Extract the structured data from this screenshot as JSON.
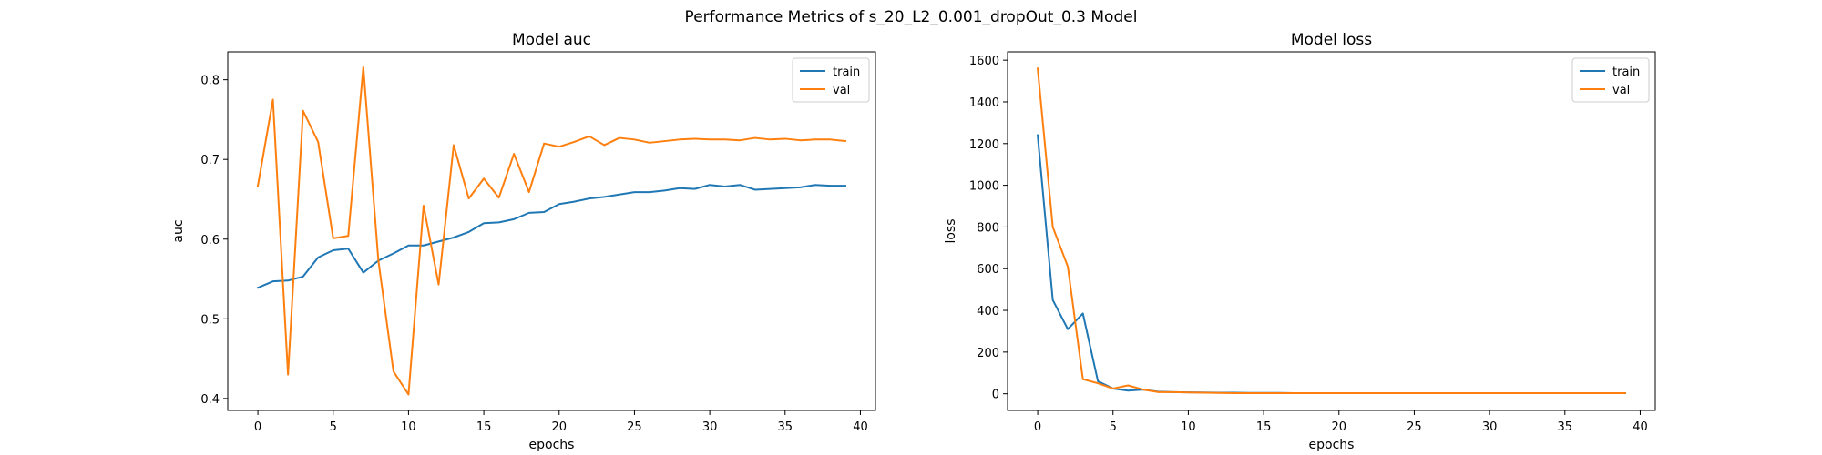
{
  "figure": {
    "suptitle": "Performance Metrics of s_20_L2_0.001_dropOut_0.3 Model"
  },
  "colors": {
    "train": "#1f77b4",
    "val": "#ff7f0e",
    "axis": "#000000",
    "legend_border": "#cccccc"
  },
  "chart_data": [
    {
      "type": "line",
      "title": "Model auc",
      "xlabel": "epochs",
      "ylabel": "auc",
      "xlim": [
        -2,
        41
      ],
      "ylim": [
        0.385,
        0.835
      ],
      "xticks": [
        0,
        5,
        10,
        15,
        20,
        25,
        30,
        35,
        40
      ],
      "yticks": [
        0.4,
        0.5,
        0.6,
        0.7,
        0.8
      ],
      "ytick_labels": [
        "0.4",
        "0.5",
        "0.6",
        "0.7",
        "0.8"
      ],
      "grid": false,
      "legend": "top-right",
      "x": [
        0,
        1,
        2,
        3,
        4,
        5,
        6,
        7,
        8,
        9,
        10,
        11,
        12,
        13,
        14,
        15,
        16,
        17,
        18,
        19,
        20,
        21,
        22,
        23,
        24,
        25,
        26,
        27,
        28,
        29,
        30,
        31,
        32,
        33,
        34,
        35,
        36,
        37,
        38,
        39
      ],
      "series": [
        {
          "name": "train",
          "color": "#1f77b4",
          "values": [
            0.539,
            0.547,
            0.548,
            0.553,
            0.577,
            0.586,
            0.588,
            0.558,
            0.573,
            0.582,
            0.592,
            0.592,
            0.597,
            0.602,
            0.609,
            0.62,
            0.621,
            0.625,
            0.633,
            0.634,
            0.644,
            0.647,
            0.651,
            0.653,
            0.656,
            0.659,
            0.659,
            0.661,
            0.664,
            0.663,
            0.668,
            0.666,
            0.668,
            0.662,
            0.663,
            0.664,
            0.665,
            0.668,
            0.667,
            0.667
          ]
        },
        {
          "name": "val",
          "color": "#ff7f0e",
          "values": [
            0.667,
            0.775,
            0.43,
            0.761,
            0.722,
            0.601,
            0.604,
            0.816,
            0.573,
            0.434,
            0.405,
            0.642,
            0.543,
            0.718,
            0.651,
            0.676,
            0.652,
            0.707,
            0.659,
            0.72,
            0.716,
            0.722,
            0.729,
            0.718,
            0.727,
            0.725,
            0.721,
            0.723,
            0.725,
            0.726,
            0.725,
            0.725,
            0.724,
            0.727,
            0.725,
            0.726,
            0.724,
            0.725,
            0.725,
            0.723
          ]
        }
      ]
    },
    {
      "type": "line",
      "title": "Model loss",
      "xlabel": "epochs",
      "ylabel": "loss",
      "xlim": [
        -2,
        41
      ],
      "ylim": [
        -80,
        1640
      ],
      "xticks": [
        0,
        5,
        10,
        15,
        20,
        25,
        30,
        35,
        40
      ],
      "yticks": [
        0,
        200,
        400,
        600,
        800,
        1000,
        1200,
        1400,
        1600
      ],
      "ytick_labels": [
        "0",
        "200",
        "400",
        "600",
        "800",
        "1000",
        "1200",
        "1400",
        "1600"
      ],
      "grid": false,
      "legend": "top-right",
      "x": [
        0,
        1,
        2,
        3,
        4,
        5,
        6,
        7,
        8,
        9,
        10,
        11,
        12,
        13,
        14,
        15,
        16,
        17,
        18,
        19,
        20,
        21,
        22,
        23,
        24,
        25,
        26,
        27,
        28,
        29,
        30,
        31,
        32,
        33,
        34,
        35,
        36,
        37,
        38,
        39
      ],
      "series": [
        {
          "name": "train",
          "color": "#1f77b4",
          "values": [
            1240,
            450,
            310,
            385,
            60,
            25,
            15,
            20,
            10,
            8,
            7,
            6,
            5,
            5,
            4,
            4,
            4,
            3,
            3,
            3,
            3,
            3,
            3,
            3,
            3,
            3,
            3,
            3,
            3,
            3,
            3,
            3,
            3,
            3,
            3,
            3,
            3,
            3,
            3,
            3
          ]
        },
        {
          "name": "val",
          "color": "#ff7f0e",
          "values": [
            1560,
            800,
            610,
            70,
            50,
            25,
            40,
            20,
            8,
            8,
            6,
            5,
            4,
            3,
            3,
            3,
            3,
            3,
            3,
            3,
            3,
            3,
            3,
            3,
            3,
            3,
            3,
            3,
            3,
            3,
            3,
            3,
            3,
            3,
            3,
            3,
            3,
            3,
            3,
            3
          ]
        }
      ]
    }
  ]
}
